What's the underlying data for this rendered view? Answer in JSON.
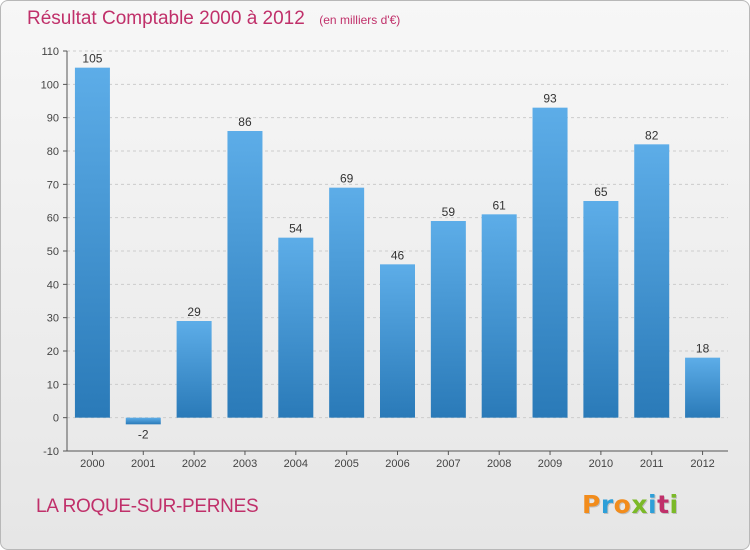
{
  "header": {
    "title": "Résultat Comptable 2000 à 2012",
    "subtitle": "(en milliers d'€)"
  },
  "footer": {
    "commune": "LA ROQUE-SUR-PERNES",
    "logo_text": "Proxiti",
    "logo_colors": [
      "#f28c1c",
      "#2e9fd8",
      "#f28c1c",
      "#7bb928",
      "#2e9fd8",
      "#c0306a",
      "#7bb928"
    ]
  },
  "colors": {
    "bar_top": "#5dade8",
    "bar_bottom": "#2a7ab8",
    "title": "#c0306a",
    "grid": "#cccccc",
    "axis": "#555555"
  },
  "chart_data": {
    "type": "bar",
    "title": "Résultat Comptable 2000 à 2012",
    "subtitle": "(en milliers d'€)",
    "categories": [
      "2000",
      "2001",
      "2002",
      "2003",
      "2004",
      "2005",
      "2006",
      "2007",
      "2008",
      "2009",
      "2010",
      "2011",
      "2012"
    ],
    "values": [
      105,
      -2,
      29,
      86,
      54,
      69,
      46,
      59,
      61,
      93,
      65,
      82,
      18
    ],
    "ylim": [
      -10,
      110
    ],
    "yticks": [
      -10,
      0,
      10,
      20,
      30,
      40,
      50,
      60,
      70,
      80,
      90,
      100,
      110
    ],
    "grid": true,
    "grid_style": "dashed-horizontal"
  }
}
